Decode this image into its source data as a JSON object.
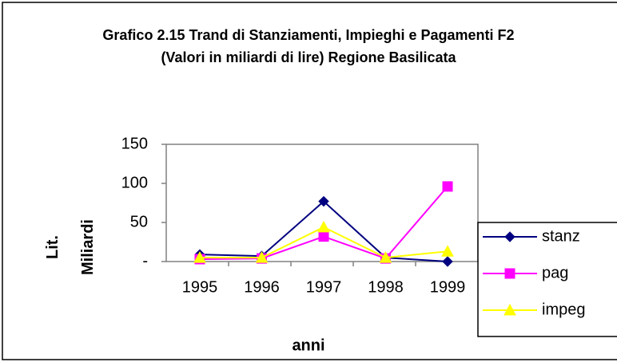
{
  "chart_data": {
    "type": "line",
    "title": "Grafico 2.15 Trand di Stanziamenti, Impieghi e Pagamenti F2 (Valori in miliardi di lire) Regione Basilicata",
    "xlabel": "anni",
    "ylabel": "Lit. Miliardi",
    "categories": [
      "1995",
      "1996",
      "1997",
      "1998",
      "1999"
    ],
    "series": [
      {
        "name": "stanz",
        "color": "#000080",
        "marker": "diamond",
        "values": [
          9,
          7,
          77,
          5,
          0
        ]
      },
      {
        "name": "pag",
        "color": "#ff00ff",
        "marker": "square",
        "values": [
          3,
          4,
          32,
          4,
          96
        ]
      },
      {
        "name": "impeg",
        "color": "#ffff00",
        "marker": "triangle",
        "values": [
          5,
          5,
          44,
          5,
          13
        ]
      }
    ],
    "ylim": [
      0,
      150
    ],
    "yticks": [
      {
        "value": 0,
        "label": "-"
      },
      50,
      100,
      150
    ],
    "grid": false,
    "legend": "right"
  }
}
